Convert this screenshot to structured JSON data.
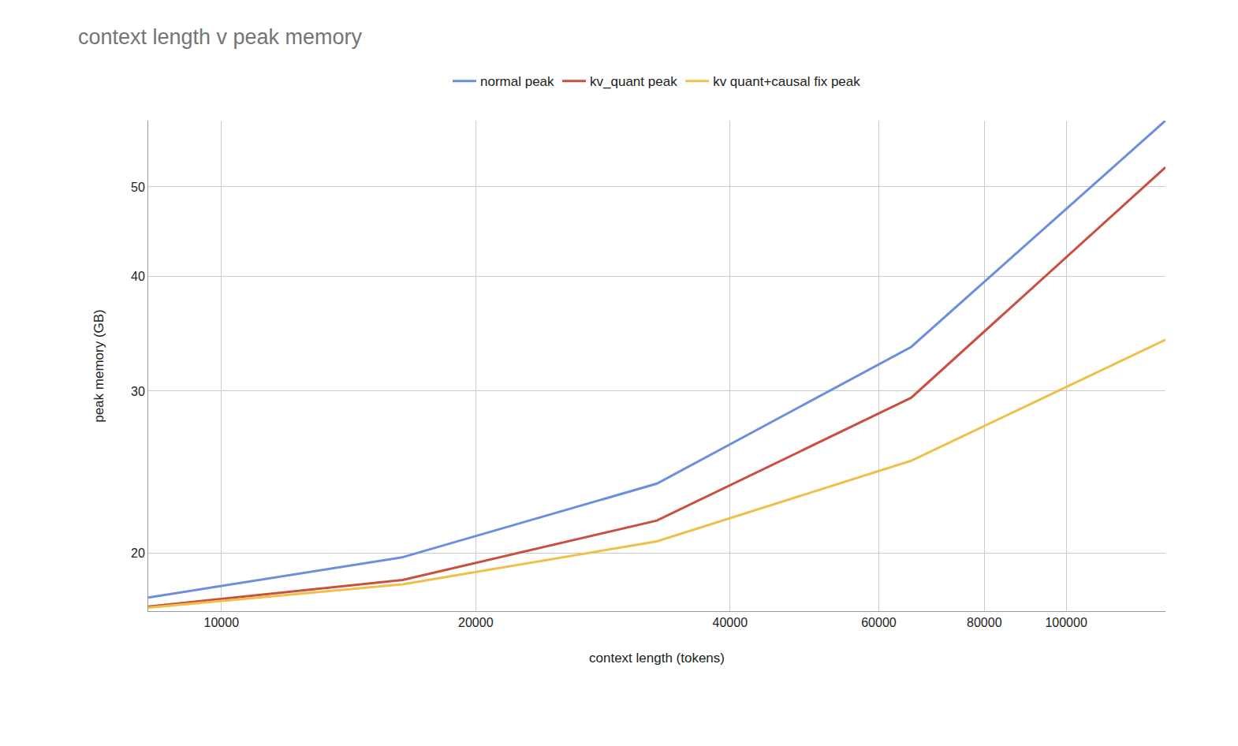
{
  "chart_data": {
    "type": "line",
    "title": "context length v peak memory",
    "x_label": "context length (tokens)",
    "y_label": "peak memory (GB)",
    "x": [
      8192,
      16384,
      32768,
      65536,
      131072
    ],
    "series": [
      {
        "name": "normal peak",
        "color": "#6b8fde",
        "values": [
          17.9,
          19.8,
          23.8,
          33.5,
          59
        ]
      },
      {
        "name": "kv_quant peak",
        "color": "#c9503f",
        "values": [
          17.5,
          18.7,
          21.7,
          29.5,
          52.5
        ]
      },
      {
        "name": "kv quant+causal fix peak",
        "color": "#eec04a",
        "values": [
          17.45,
          18.5,
          20.6,
          25.2,
          34.1
        ]
      }
    ],
    "xlim": [
      8192,
      131072
    ],
    "ylim": [
      17.3,
      59
    ],
    "xticks": [
      10000,
      20000,
      40000,
      60000,
      80000,
      100000
    ],
    "yticks": [
      20,
      30,
      40,
      50
    ],
    "log": true,
    "grid": true,
    "legend": "top"
  }
}
